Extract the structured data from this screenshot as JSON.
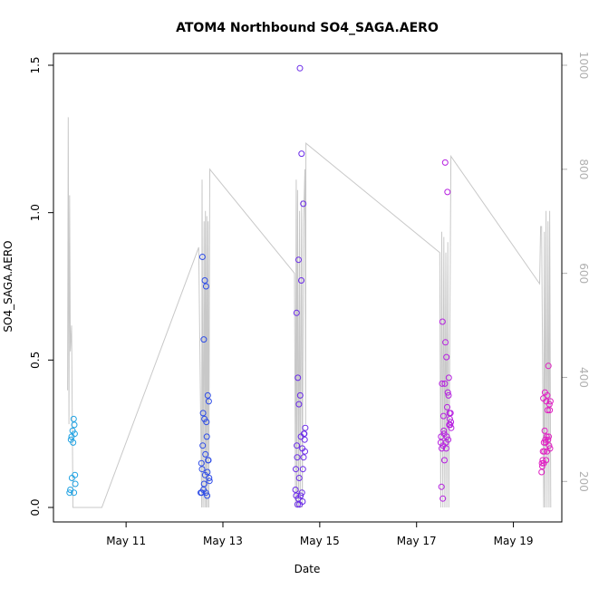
{
  "chart_data": {
    "type": "scatter",
    "title": "ATOM4 Northbound SO4_SAGA.AERO",
    "xlabel": "Date",
    "ylabel": "SO4_SAGA.AERO",
    "xlim": [
      "2018-05-09T12:00",
      "2018-05-20T00:00"
    ],
    "ylim": [
      0,
      1.5
    ],
    "y2lim": [
      1000,
      150
    ],
    "y2_reversed": true,
    "x_ticks": [
      {
        "date": "2018-05-11",
        "label": "May 11"
      },
      {
        "date": "2018-05-13",
        "label": "May 13"
      },
      {
        "date": "2018-05-15",
        "label": "May 15"
      },
      {
        "date": "2018-05-17",
        "label": "May 17"
      },
      {
        "date": "2018-05-19",
        "label": "May 19"
      }
    ],
    "y_ticks": [
      {
        "value": 0,
        "label": "0.0"
      },
      {
        "value": 0.5,
        "label": "0.5"
      },
      {
        "value": 1,
        "label": "1.0"
      },
      {
        "value": 1.5,
        "label": "1.5"
      }
    ],
    "y2_ticks": [
      {
        "value": 200,
        "label": "200"
      },
      {
        "value": 400,
        "label": "400"
      },
      {
        "value": 600,
        "label": "600"
      },
      {
        "value": 800,
        "label": "800"
      },
      {
        "value": 1000,
        "label": "1000"
      }
    ],
    "grid": false,
    "point_colors": [
      "#1fa2e3",
      "#2e4ce6",
      "#6a2ae8",
      "#b620e0",
      "#e01fc3"
    ],
    "line_color": "#c8c8c8",
    "series": [
      {
        "points": [
          [
            "2018-05-09T20:00",
            0.05
          ],
          [
            "2018-05-09T20:20",
            0.06
          ],
          [
            "2018-05-09T20:40",
            0.23
          ],
          [
            "2018-05-09T21:00",
            0.24
          ],
          [
            "2018-05-09T21:10",
            0.1
          ],
          [
            "2018-05-09T21:30",
            0.26
          ],
          [
            "2018-05-09T21:45",
            0.22
          ],
          [
            "2018-05-09T22:00",
            0.3
          ],
          [
            "2018-05-09T22:10",
            0.05
          ],
          [
            "2018-05-09T22:20",
            0.28
          ],
          [
            "2018-05-09T22:30",
            0.25
          ],
          [
            "2018-05-09T22:40",
            0.11
          ],
          [
            "2018-05-09T22:50",
            0.08
          ]
        ]
      },
      {
        "points": [
          [
            "2018-05-12T13:00",
            0.05
          ],
          [
            "2018-05-12T13:20",
            0.15
          ],
          [
            "2018-05-12T13:30",
            0.05
          ],
          [
            "2018-05-12T13:40",
            0.13
          ],
          [
            "2018-05-12T13:50",
            0.85
          ],
          [
            "2018-05-12T14:00",
            0.21
          ],
          [
            "2018-05-12T14:10",
            0.32
          ],
          [
            "2018-05-12T14:20",
            0.06
          ],
          [
            "2018-05-12T14:30",
            0.57
          ],
          [
            "2018-05-12T14:40",
            0.08
          ],
          [
            "2018-05-12T14:50",
            0.3
          ],
          [
            "2018-05-12T15:00",
            0.77
          ],
          [
            "2018-05-12T15:10",
            0.11
          ],
          [
            "2018-05-12T15:20",
            0.18
          ],
          [
            "2018-05-12T15:30",
            0.05
          ],
          [
            "2018-05-12T15:40",
            0.75
          ],
          [
            "2018-05-12T15:50",
            0.29
          ],
          [
            "2018-05-12T16:00",
            0.24
          ],
          [
            "2018-05-12T16:10",
            0.04
          ],
          [
            "2018-05-12T16:20",
            0.12
          ],
          [
            "2018-05-12T16:30",
            0.38
          ],
          [
            "2018-05-12T16:40",
            0.16
          ],
          [
            "2018-05-12T16:50",
            0.16
          ],
          [
            "2018-05-12T17:00",
            0.36
          ],
          [
            "2018-05-12T17:10",
            0.1
          ],
          [
            "2018-05-12T17:20",
            0.09
          ]
        ]
      },
      {
        "points": [
          [
            "2018-05-14T12:00",
            0.06
          ],
          [
            "2018-05-14T12:10",
            0.13
          ],
          [
            "2018-05-14T12:20",
            0.04
          ],
          [
            "2018-05-14T12:30",
            0.66
          ],
          [
            "2018-05-14T12:40",
            0.21
          ],
          [
            "2018-05-14T12:50",
            0.17
          ],
          [
            "2018-05-14T13:00",
            0.01
          ],
          [
            "2018-05-14T13:10",
            0.44
          ],
          [
            "2018-05-14T13:20",
            0.03
          ],
          [
            "2018-05-14T13:30",
            0.84
          ],
          [
            "2018-05-14T13:40",
            0.35
          ],
          [
            "2018-05-14T13:50",
            0.1
          ],
          [
            "2018-05-14T14:00",
            0.01
          ],
          [
            "2018-05-14T14:10",
            1.49
          ],
          [
            "2018-05-14T14:20",
            0.38
          ],
          [
            "2018-05-14T14:30",
            0.04
          ],
          [
            "2018-05-14T14:40",
            0.24
          ],
          [
            "2018-05-14T14:50",
            0.77
          ],
          [
            "2018-05-14T15:00",
            1.2
          ],
          [
            "2018-05-14T15:10",
            0.05
          ],
          [
            "2018-05-14T15:20",
            0.2
          ],
          [
            "2018-05-14T15:30",
            0.02
          ],
          [
            "2018-05-14T15:40",
            0.13
          ],
          [
            "2018-05-14T15:50",
            1.03
          ],
          [
            "2018-05-14T16:00",
            0.17
          ],
          [
            "2018-05-14T16:10",
            0.25
          ],
          [
            "2018-05-14T16:20",
            0.25
          ],
          [
            "2018-05-14T16:30",
            0.23
          ],
          [
            "2018-05-14T16:40",
            0.19
          ],
          [
            "2018-05-14T16:50",
            0.27
          ]
        ]
      },
      {
        "points": [
          [
            "2018-05-17T12:00",
            0.22
          ],
          [
            "2018-05-17T12:10",
            0.24
          ],
          [
            "2018-05-17T12:20",
            0.07
          ],
          [
            "2018-05-17T12:30",
            0.2
          ],
          [
            "2018-05-17T12:40",
            0.42
          ],
          [
            "2018-05-17T12:50",
            0.63
          ],
          [
            "2018-05-17T13:00",
            0.03
          ],
          [
            "2018-05-17T13:10",
            0.21
          ],
          [
            "2018-05-17T13:20",
            0.31
          ],
          [
            "2018-05-17T13:30",
            0.26
          ],
          [
            "2018-05-17T13:40",
            0.25
          ],
          [
            "2018-05-17T13:50",
            0.16
          ],
          [
            "2018-05-17T14:00",
            0.42
          ],
          [
            "2018-05-17T14:10",
            1.17
          ],
          [
            "2018-05-17T14:20",
            0.56
          ],
          [
            "2018-05-17T14:30",
            0.22
          ],
          [
            "2018-05-17T14:40",
            0.2
          ],
          [
            "2018-05-17T14:50",
            0.51
          ],
          [
            "2018-05-17T15:00",
            0.24
          ],
          [
            "2018-05-17T15:10",
            0.34
          ],
          [
            "2018-05-17T15:20",
            1.07
          ],
          [
            "2018-05-17T15:30",
            0.39
          ],
          [
            "2018-05-17T15:40",
            0.23
          ],
          [
            "2018-05-17T15:50",
            0.38
          ],
          [
            "2018-05-17T16:00",
            0.44
          ],
          [
            "2018-05-17T16:10",
            0.28
          ],
          [
            "2018-05-17T16:20",
            0.32
          ],
          [
            "2018-05-17T16:30",
            0.3
          ],
          [
            "2018-05-17T16:40",
            0.28
          ],
          [
            "2018-05-17T16:50",
            0.32
          ],
          [
            "2018-05-17T17:00",
            0.29
          ],
          [
            "2018-05-17T17:10",
            0.27
          ]
        ]
      },
      {
        "points": [
          [
            "2018-05-19T14:00",
            0.12
          ],
          [
            "2018-05-19T14:10",
            0.15
          ],
          [
            "2018-05-19T14:20",
            0.14
          ],
          [
            "2018-05-19T14:30",
            0.16
          ],
          [
            "2018-05-19T14:40",
            0.19
          ],
          [
            "2018-05-19T14:50",
            0.37
          ],
          [
            "2018-05-19T15:00",
            0.15
          ],
          [
            "2018-05-19T15:10",
            0.22
          ],
          [
            "2018-05-19T15:20",
            0.19
          ],
          [
            "2018-05-19T15:30",
            0.26
          ],
          [
            "2018-05-19T15:40",
            0.39
          ],
          [
            "2018-05-19T15:50",
            0.23
          ],
          [
            "2018-05-19T16:00",
            0.22
          ],
          [
            "2018-05-19T16:10",
            0.16
          ],
          [
            "2018-05-19T16:20",
            0.36
          ],
          [
            "2018-05-19T16:30",
            0.24
          ],
          [
            "2018-05-19T16:40",
            0.19
          ],
          [
            "2018-05-19T16:50",
            0.38
          ],
          [
            "2018-05-19T17:00",
            0.33
          ],
          [
            "2018-05-19T17:10",
            0.23
          ],
          [
            "2018-05-19T17:20",
            0.48
          ],
          [
            "2018-05-19T17:30",
            0.24
          ],
          [
            "2018-05-19T17:40",
            0.21
          ],
          [
            "2018-05-19T17:50",
            0.35
          ],
          [
            "2018-05-19T18:00",
            0.33
          ],
          [
            "2018-05-19T18:10",
            0.2
          ],
          [
            "2018-05-19T18:20",
            0.36
          ]
        ]
      }
    ],
    "line_y2": [
      [
        "2018-05-09T19:00",
        375
      ],
      [
        "2018-05-09T19:20",
        900
      ],
      [
        "2018-05-09T19:40",
        310
      ],
      [
        "2018-05-09T20:00",
        750
      ],
      [
        "2018-05-09T20:20",
        450
      ],
      [
        "2018-05-09T21:00",
        500
      ],
      [
        "2018-05-09T21:40",
        150
      ],
      [
        "2018-05-10T12:00",
        150
      ],
      [
        "2018-05-11T12:00",
        400
      ],
      [
        "2018-05-12T12:00",
        650
      ],
      [
        "2018-05-12T13:30",
        150
      ],
      [
        "2018-05-12T13:40",
        780
      ],
      [
        "2018-05-12T14:10",
        150
      ],
      [
        "2018-05-12T14:40",
        700
      ],
      [
        "2018-05-12T15:00",
        150
      ],
      [
        "2018-05-12T15:20",
        720
      ],
      [
        "2018-05-12T15:40",
        150
      ],
      [
        "2018-05-12T16:00",
        710
      ],
      [
        "2018-05-12T16:20",
        150
      ],
      [
        "2018-05-12T16:40",
        700
      ],
      [
        "2018-05-12T17:00",
        150
      ],
      [
        "2018-05-12T17:30",
        800
      ],
      [
        "2018-05-14T11:30",
        600
      ],
      [
        "2018-05-14T12:00",
        150
      ],
      [
        "2018-05-14T12:20",
        780
      ],
      [
        "2018-05-14T12:40",
        150
      ],
      [
        "2018-05-14T13:00",
        760
      ],
      [
        "2018-05-14T13:30",
        150
      ],
      [
        "2018-05-14T14:00",
        720
      ],
      [
        "2018-05-14T14:20",
        150
      ],
      [
        "2018-05-14T15:00",
        740
      ],
      [
        "2018-05-14T15:20",
        150
      ],
      [
        "2018-05-14T16:00",
        700
      ],
      [
        "2018-05-14T16:40",
        800
      ],
      [
        "2018-05-14T17:00",
        310
      ],
      [
        "2018-05-14T17:10",
        850
      ],
      [
        "2018-05-17T11:30",
        640
      ],
      [
        "2018-05-17T12:00",
        150
      ],
      [
        "2018-05-17T12:30",
        680
      ],
      [
        "2018-05-17T13:00",
        150
      ],
      [
        "2018-05-17T13:30",
        670
      ],
      [
        "2018-05-17T14:00",
        150
      ],
      [
        "2018-05-17T14:30",
        640
      ],
      [
        "2018-05-17T15:00",
        150
      ],
      [
        "2018-05-17T15:30",
        660
      ],
      [
        "2018-05-17T16:00",
        150
      ],
      [
        "2018-05-17T17:00",
        825
      ],
      [
        "2018-05-19T13:00",
        580
      ],
      [
        "2018-05-19T13:30",
        690
      ],
      [
        "2018-05-19T14:00",
        690
      ],
      [
        "2018-05-19T15:00",
        150
      ],
      [
        "2018-05-19T15:20",
        680
      ],
      [
        "2018-05-19T15:40",
        150
      ],
      [
        "2018-05-19T16:10",
        720
      ],
      [
        "2018-05-19T16:40",
        150
      ],
      [
        "2018-05-19T17:10",
        700
      ],
      [
        "2018-05-19T17:40",
        150
      ],
      [
        "2018-05-19T18:00",
        720
      ],
      [
        "2018-05-19T18:30",
        150
      ]
    ]
  }
}
